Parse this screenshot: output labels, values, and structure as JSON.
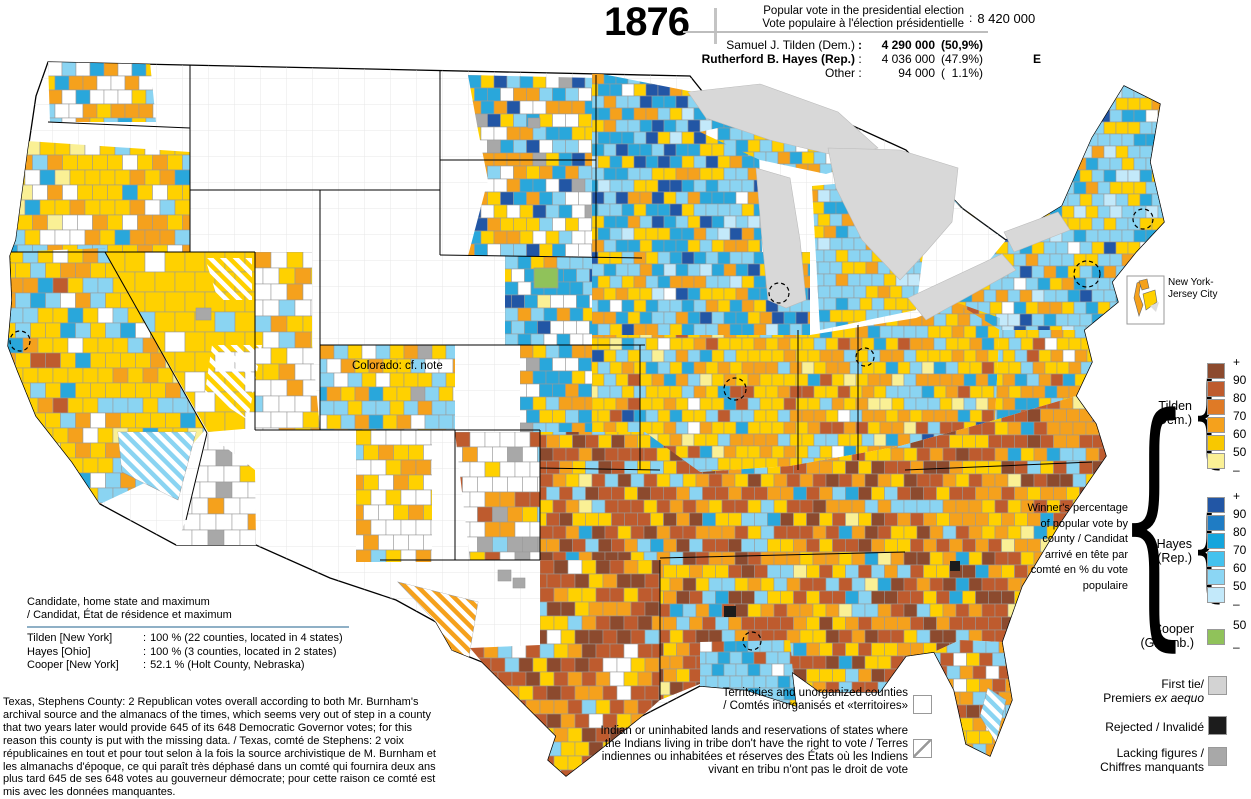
{
  "header": {
    "year": "1876",
    "popular_vote_label_en": "Popular vote in the presidential election",
    "popular_vote_label_fr": "Vote populaire à l'élection présidentielle",
    "colon": ":",
    "total_votes": "8 420 000",
    "results": [
      {
        "name": "Samuel J. Tilden (Dem.)",
        "colon": ":",
        "votes": "4 290 000",
        "share": "(50,9%)",
        "elected": ""
      },
      {
        "name": "Rutherford B. Hayes (Rep.)",
        "colon": ":",
        "votes": "4 036 000",
        "share": "(47.9%)",
        "elected": "E"
      },
      {
        "name": "Other",
        "colon": ":",
        "votes": "94 000",
        "share": "(  1.1%)",
        "elected": ""
      }
    ]
  },
  "legend": {
    "winner_note": "Winner's percentage of popular vote by county / Candidat arrivé en tête par comté en % du vote populaire",
    "scales": {
      "tilden": {
        "name": "Tilden",
        "party": "(Dem.)",
        "ticks": [
          "+",
          "90",
          "80",
          "70",
          "60",
          "50",
          "–"
        ],
        "colors": [
          "#8C4A2E",
          "#BE5B2E",
          "#DF7A26",
          "#F5A11C",
          "#F8C800",
          "#FAF095"
        ]
      },
      "hayes": {
        "name": "Hayes",
        "party": "(Rep.)",
        "ticks": [
          "+",
          "90",
          "80",
          "70",
          "60",
          "50",
          "–"
        ],
        "colors": [
          "#2256A5",
          "#1F7CC4",
          "#15A5DC",
          "#44C2EE",
          "#8BD6F4",
          "#C3E9FA"
        ]
      },
      "cooper": {
        "name": "Cooper",
        "party": "(Greenb.)",
        "ticks": [
          "50",
          "–"
        ],
        "colors": [
          "#90C25A"
        ]
      }
    },
    "special": {
      "first_tie_en": "First tie/",
      "first_tie_fr_plain": "Premiers ",
      "first_tie_fr_italic": "ex aequo",
      "first_tie_color": "#D3D3D3",
      "rejected_label": "Rejected / Invalidé",
      "rejected_color": "#1C1C1C",
      "lacking_line1": "Lacking figures /",
      "lacking_line2": "Chiffres manquants",
      "lacking_color": "#A8A8A8"
    }
  },
  "map": {
    "colorado_note": "Colorado: cf. note",
    "inset_label_line1": "New York-",
    "inset_label_line2": "Jersey City",
    "territories_note_en": "Territories and unorganized counties",
    "territories_note_fr": "/ Comtés inorganisés et «territoires»",
    "indian_note": "Indian or uninhabited lands and reservations of states where the Indians living in tribe don't have the right to vote / Terres indiennes ou inhabitées et réserves des États où les Indiens vivant en tribu n'ont pas le droit de vote",
    "palette": {
      "yellow": "#FFD100",
      "pale_yellow": "#FAF095",
      "orange": "#F5A11C",
      "brown": "#BE5B2E",
      "dark_brown": "#8C4A2E",
      "light_blue": "#8AD4F2",
      "very_light_blue": "#C3E9FA",
      "mid_blue": "#29A7DB",
      "dark_blue": "#2256A5",
      "green": "#90C25A",
      "gray": "#A8A8A8",
      "light_gray": "#D3D3D3",
      "black": "#1C1C1C",
      "white": "#FFFFFF",
      "lake_gray": "#D8D8D8",
      "county_border": "#999999"
    }
  },
  "maxima": {
    "title_en": "Candidate, home state and maximum",
    "title_fr": "/ Candidat, État de résidence et maximum",
    "rows": [
      {
        "name": "Tilden [New York]",
        "colon": ":",
        "value": "100 % (22 counties, located in 4 states)"
      },
      {
        "name": "Hayes [Ohio]",
        "colon": ":",
        "value": "100 % (3 counties, located in 2 states)"
      },
      {
        "name": "Cooper [New York]",
        "colon": ":",
        "value": "52.1 % (Holt County, Nebraska)"
      }
    ]
  },
  "footnote": "Texas, Stephens County: 2 Republican votes overall according to both Mr. Burnham's archival source and the almanacs of the times, which seems very out of step in a county that two years later would provide 645 of its 648 Democratic Governor votes; for this reason this county is put with the missing data. / Texas, comté de Stephens: 2 voix républicaines en tout et pour tout selon à la fois la source archivistique de M. Burnham et les almanachs d'époque, ce qui paraît très déphasé dans un comté qui fournira deux ans plus tard 645 de ses 648 votes au gouverneur démocrate; pour cette raison ce comté est mis avec les données manquantes."
}
